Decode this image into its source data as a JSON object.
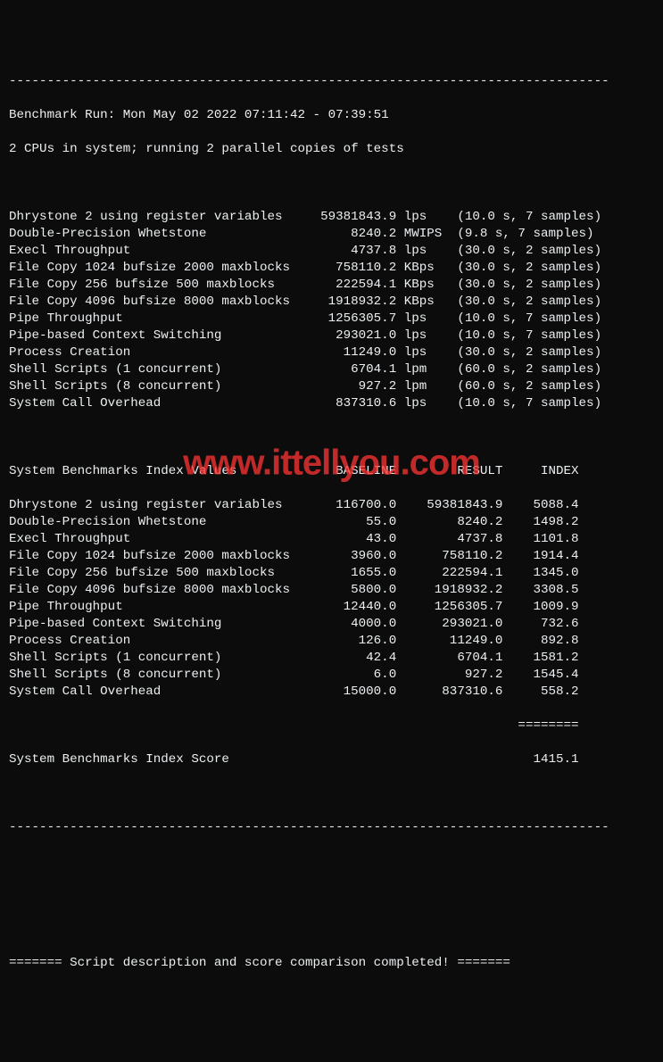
{
  "dashline": "-------------------------------------------------------------------------------",
  "header": {
    "run_line": "Benchmark Run: Mon May 02 2022 07:11:42 - 07:39:51",
    "cpu_line": "2 CPUs in system; running 2 parallel copies of tests"
  },
  "col_widths": {
    "name": 39,
    "value": 12,
    "unit": 7,
    "timing": 22
  },
  "tests": [
    {
      "name": "Dhrystone 2 using register variables",
      "value": "59381843.9",
      "unit": "lps",
      "timing": "(10.0 s, 7 samples)"
    },
    {
      "name": "Double-Precision Whetstone",
      "value": "8240.2",
      "unit": "MWIPS",
      "timing": "(9.8 s, 7 samples)"
    },
    {
      "name": "Execl Throughput",
      "value": "4737.8",
      "unit": "lps",
      "timing": "(30.0 s, 2 samples)"
    },
    {
      "name": "File Copy 1024 bufsize 2000 maxblocks",
      "value": "758110.2",
      "unit": "KBps",
      "timing": "(30.0 s, 2 samples)"
    },
    {
      "name": "File Copy 256 bufsize 500 maxblocks",
      "value": "222594.1",
      "unit": "KBps",
      "timing": "(30.0 s, 2 samples)"
    },
    {
      "name": "File Copy 4096 bufsize 8000 maxblocks",
      "value": "1918932.2",
      "unit": "KBps",
      "timing": "(30.0 s, 2 samples)"
    },
    {
      "name": "Pipe Throughput",
      "value": "1256305.7",
      "unit": "lps",
      "timing": "(10.0 s, 7 samples)"
    },
    {
      "name": "Pipe-based Context Switching",
      "value": "293021.0",
      "unit": "lps",
      "timing": "(10.0 s, 7 samples)"
    },
    {
      "name": "Process Creation",
      "value": "11249.0",
      "unit": "lps",
      "timing": "(30.0 s, 2 samples)"
    },
    {
      "name": "Shell Scripts (1 concurrent)",
      "value": "6704.1",
      "unit": "lpm",
      "timing": "(60.0 s, 2 samples)"
    },
    {
      "name": "Shell Scripts (8 concurrent)",
      "value": "927.2",
      "unit": "lpm",
      "timing": "(60.0 s, 2 samples)"
    },
    {
      "name": "System Call Overhead",
      "value": "837310.6",
      "unit": "lps",
      "timing": "(10.0 s, 7 samples)"
    }
  ],
  "index_header": {
    "title": "System Benchmarks Index Values",
    "col_baseline": "BASELINE",
    "col_result": "RESULT",
    "col_index": "INDEX"
  },
  "idx_widths": {
    "name": 38,
    "baseline": 13,
    "result": 14,
    "index": 10
  },
  "index_rows": [
    {
      "name": "Dhrystone 2 using register variables",
      "baseline": "116700.0",
      "result": "59381843.9",
      "index": "5088.4"
    },
    {
      "name": "Double-Precision Whetstone",
      "baseline": "55.0",
      "result": "8240.2",
      "index": "1498.2"
    },
    {
      "name": "Execl Throughput",
      "baseline": "43.0",
      "result": "4737.8",
      "index": "1101.8"
    },
    {
      "name": "File Copy 1024 bufsize 2000 maxblocks",
      "baseline": "3960.0",
      "result": "758110.2",
      "index": "1914.4"
    },
    {
      "name": "File Copy 256 bufsize 500 maxblocks",
      "baseline": "1655.0",
      "result": "222594.1",
      "index": "1345.0"
    },
    {
      "name": "File Copy 4096 bufsize 8000 maxblocks",
      "baseline": "5800.0",
      "result": "1918932.2",
      "index": "3308.5"
    },
    {
      "name": "Pipe Throughput",
      "baseline": "12440.0",
      "result": "1256305.7",
      "index": "1009.9"
    },
    {
      "name": "Pipe-based Context Switching",
      "baseline": "4000.0",
      "result": "293021.0",
      "index": "732.6"
    },
    {
      "name": "Process Creation",
      "baseline": "126.0",
      "result": "11249.0",
      "index": "892.8"
    },
    {
      "name": "Shell Scripts (1 concurrent)",
      "baseline": "42.4",
      "result": "6704.1",
      "index": "1581.2"
    },
    {
      "name": "Shell Scripts (8 concurrent)",
      "baseline": "6.0",
      "result": "927.2",
      "index": "1545.4"
    },
    {
      "name": "System Call Overhead",
      "baseline": "15000.0",
      "result": "837310.6",
      "index": "558.2"
    }
  ],
  "eqline": "                                                                   ========",
  "score": {
    "label": "System Benchmarks Index Score",
    "value": "1415.1"
  },
  "footer": "======= Script description and score comparison completed! =======",
  "watermark": "www.ittellyou.com"
}
